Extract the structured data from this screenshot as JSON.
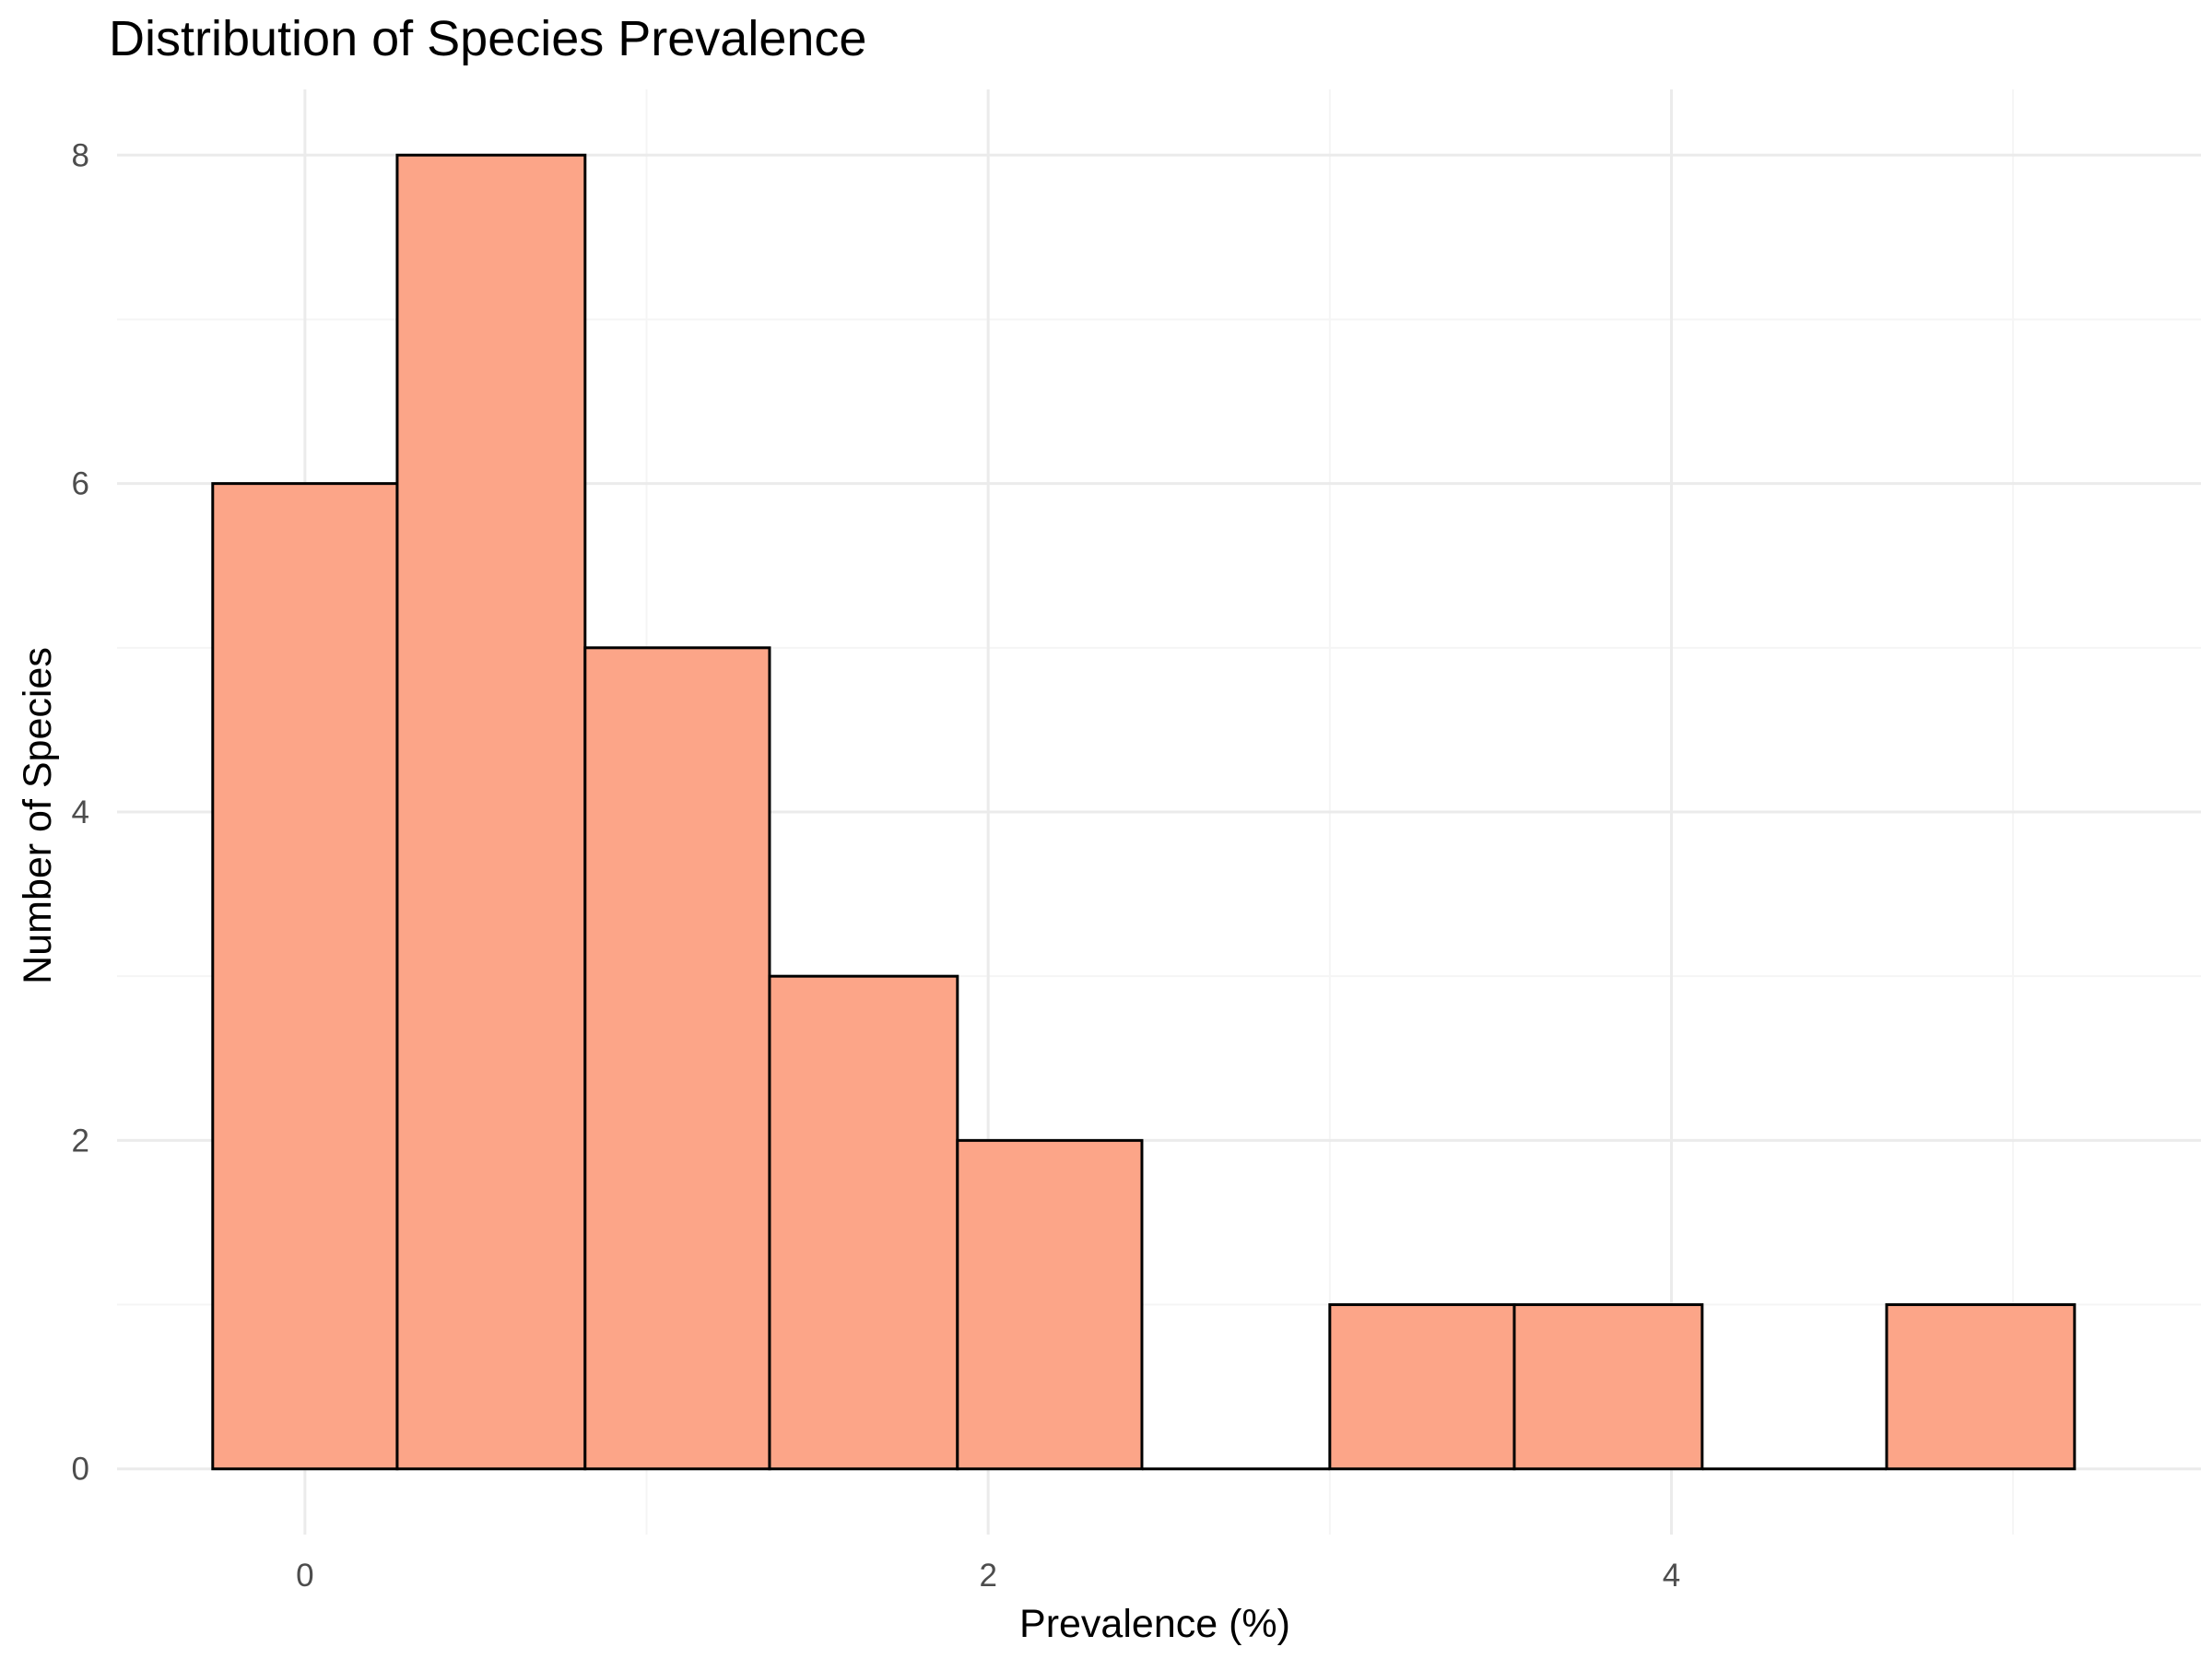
{
  "colors": {
    "bar_fill": "#fca588",
    "bar_stroke": "#000000",
    "grid_major": "#ebebeb",
    "grid_minor": "#f5f5f5",
    "background": "#ffffff"
  },
  "chart_data": {
    "type": "bar",
    "title": "Distribution of Species Prevalence",
    "xlabel": "Prevalence (%)",
    "ylabel": "Number of Species",
    "xlim": [
      -0.55,
      5.55
    ],
    "ylim": [
      -0.4,
      8.4
    ],
    "x_ticks": [
      0,
      2,
      4
    ],
    "x_tick_labels": [
      "0",
      "2",
      "4"
    ],
    "y_ticks": [
      0,
      2,
      4,
      6,
      8
    ],
    "y_tick_labels": [
      "0",
      "2",
      "4",
      "6",
      "8"
    ],
    "grid": true,
    "legend": "none",
    "bins": [
      {
        "x0": -0.27,
        "x1": 0.27,
        "count": 6
      },
      {
        "x0": 0.27,
        "x1": 0.82,
        "count": 8
      },
      {
        "x0": 0.82,
        "x1": 1.36,
        "count": 5
      },
      {
        "x0": 1.36,
        "x1": 1.91,
        "count": 3
      },
      {
        "x0": 1.91,
        "x1": 2.45,
        "count": 2
      },
      {
        "x0": 2.45,
        "x1": 3.0,
        "count": 0
      },
      {
        "x0": 3.0,
        "x1": 3.54,
        "count": 1
      },
      {
        "x0": 3.54,
        "x1": 4.09,
        "count": 1
      },
      {
        "x0": 4.09,
        "x1": 4.63,
        "count": 0
      },
      {
        "x0": 4.63,
        "x1": 5.18,
        "count": 1
      }
    ]
  }
}
